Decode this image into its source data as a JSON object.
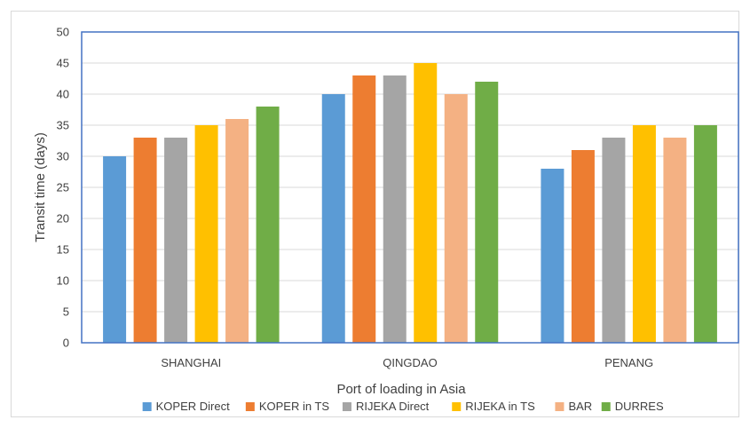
{
  "chart_data": {
    "type": "bar",
    "title": "",
    "xlabel": "Port of loading in Asia",
    "ylabel": "Transit time (days)",
    "categories": [
      "SHANGHAI",
      "QINGDAO",
      "PENANG"
    ],
    "ylim": [
      0,
      50
    ],
    "yticks": [
      "0",
      "5",
      "10",
      "15",
      "20",
      "25",
      "30",
      "35",
      "40",
      "45",
      "50"
    ],
    "grid": true,
    "legend_position": "bottom",
    "series": [
      {
        "name": "KOPER Direct",
        "color": "#5b9bd5",
        "values": [
          30,
          40,
          28
        ]
      },
      {
        "name": "KOPER in TS",
        "color": "#ed7d31",
        "values": [
          33,
          43,
          31
        ]
      },
      {
        "name": "RIJEKA Direct",
        "color": "#a5a5a5",
        "values": [
          33,
          43,
          33
        ]
      },
      {
        "name": "RIJEKA in TS",
        "color": "#ffc000",
        "values": [
          35,
          45,
          35
        ]
      },
      {
        "name": "BAR",
        "color": "#f4b183",
        "values": [
          36,
          40,
          33
        ]
      },
      {
        "name": "DURRES",
        "color": "#70ad47",
        "values": [
          38,
          42,
          35
        ]
      }
    ]
  },
  "colors": {
    "plot_border": "#4472c4",
    "gridline": "#d9d9d9",
    "text": "#404040"
  }
}
